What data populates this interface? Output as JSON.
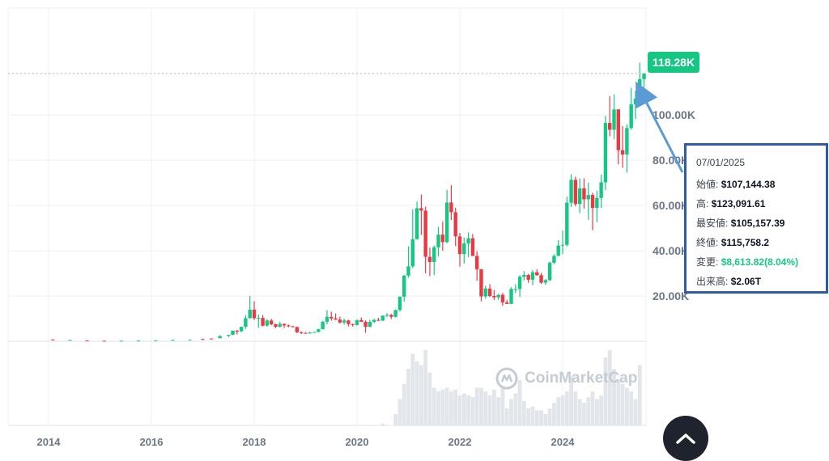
{
  "chart_data": {
    "type": "candlestick",
    "x_ticks": [
      "2014",
      "2016",
      "2018",
      "2020",
      "2022",
      "2024"
    ],
    "y_ticks": [
      "20.00K",
      "40.00K",
      "60.00K",
      "80.00K",
      "100.00K"
    ],
    "ylim": [
      0,
      125000
    ],
    "current_price_label": "118.28K",
    "current_price": 118280,
    "colors": {
      "up": "#16c784",
      "down": "#ea3943",
      "volume": "#e2e5ea",
      "grid": "#eef0f3"
    },
    "candles": [
      [
        "2014-02",
        800,
        900,
        550,
        600
      ],
      [
        "2014-06",
        600,
        680,
        560,
        640
      ],
      [
        "2014-10",
        400,
        420,
        300,
        340
      ],
      [
        "2015-02",
        250,
        280,
        200,
        240
      ],
      [
        "2015-06",
        240,
        300,
        220,
        280
      ],
      [
        "2015-10",
        310,
        380,
        300,
        370
      ],
      [
        "2016-02",
        420,
        440,
        400,
        430
      ],
      [
        "2016-06",
        530,
        760,
        520,
        670
      ],
      [
        "2016-10",
        610,
        750,
        600,
        740
      ],
      [
        "2017-01",
        970,
        1150,
        750,
        960
      ],
      [
        "2017-03",
        1190,
        1290,
        900,
        1070
      ],
      [
        "2017-05",
        1350,
        2700,
        1340,
        2300
      ],
      [
        "2017-07",
        2500,
        2900,
        1800,
        2870
      ],
      [
        "2017-08",
        2870,
        4700,
        2700,
        4700
      ],
      [
        "2017-09",
        4700,
        5000,
        3000,
        4300
      ],
      [
        "2017-10",
        4400,
        6400,
        4100,
        6400
      ],
      [
        "2017-11",
        6400,
        11500,
        5500,
        10200
      ],
      [
        "2017-12",
        10200,
        20000,
        10000,
        14000
      ],
      [
        "2018-01",
        14000,
        17700,
        9400,
        10200
      ],
      [
        "2018-02",
        10200,
        11800,
        6000,
        10300
      ],
      [
        "2018-03",
        10300,
        11600,
        6600,
        6900
      ],
      [
        "2018-04",
        6900,
        9800,
        6500,
        9200
      ],
      [
        "2018-05",
        9200,
        9900,
        7100,
        7500
      ],
      [
        "2018-06",
        7500,
        7800,
        5800,
        6400
      ],
      [
        "2018-07",
        6400,
        8500,
        6100,
        7700
      ],
      [
        "2018-08",
        7700,
        7800,
        5900,
        7000
      ],
      [
        "2018-09",
        7000,
        7400,
        6200,
        6600
      ],
      [
        "2018-10",
        6600,
        6800,
        6200,
        6300
      ],
      [
        "2018-11",
        6300,
        6500,
        3600,
        4000
      ],
      [
        "2018-12",
        4000,
        4300,
        3200,
        3700
      ],
      [
        "2019-01",
        3700,
        4100,
        3400,
        3450
      ],
      [
        "2019-02",
        3450,
        4200,
        3400,
        3850
      ],
      [
        "2019-03",
        3850,
        4100,
        3700,
        4100
      ],
      [
        "2019-04",
        4100,
        5600,
        4000,
        5300
      ],
      [
        "2019-05",
        5300,
        9000,
        5300,
        8600
      ],
      [
        "2019-06",
        8600,
        13800,
        7500,
        10800
      ],
      [
        "2019-07",
        10800,
        13100,
        9100,
        10100
      ],
      [
        "2019-08",
        10100,
        12300,
        9400,
        9600
      ],
      [
        "2019-09",
        9600,
        10900,
        7800,
        8300
      ],
      [
        "2019-10",
        8300,
        10000,
        7400,
        9200
      ],
      [
        "2019-11",
        9200,
        9500,
        6600,
        7600
      ],
      [
        "2019-12",
        7600,
        7800,
        6500,
        7200
      ],
      [
        "2020-01",
        7200,
        9600,
        6900,
        9350
      ],
      [
        "2020-02",
        9350,
        10500,
        8500,
        8600
      ],
      [
        "2020-03",
        8600,
        9200,
        3800,
        6400
      ],
      [
        "2020-04",
        6400,
        9400,
        6200,
        8600
      ],
      [
        "2020-05",
        8600,
        10000,
        8100,
        9450
      ],
      [
        "2020-06",
        9450,
        10400,
        8900,
        9150
      ],
      [
        "2020-07",
        9150,
        11400,
        8900,
        11350
      ],
      [
        "2020-08",
        11350,
        12500,
        10600,
        11650
      ],
      [
        "2020-09",
        11650,
        12100,
        9800,
        10800
      ],
      [
        "2020-10",
        10800,
        14100,
        10500,
        13800
      ],
      [
        "2020-11",
        13800,
        19800,
        13200,
        19700
      ],
      [
        "2020-12",
        19700,
        29300,
        17600,
        29000
      ],
      [
        "2021-01",
        29000,
        41900,
        28100,
        33100
      ],
      [
        "2021-02",
        33100,
        58300,
        32300,
        45100
      ],
      [
        "2021-03",
        45100,
        61700,
        44900,
        58800
      ],
      [
        "2021-04",
        58800,
        64800,
        47000,
        57700
      ],
      [
        "2021-05",
        57700,
        59500,
        30000,
        37300
      ],
      [
        "2021-06",
        37300,
        41300,
        28800,
        35000
      ],
      [
        "2021-07",
        35000,
        42300,
        29300,
        41500
      ],
      [
        "2021-08",
        41500,
        50500,
        37400,
        47100
      ],
      [
        "2021-09",
        47100,
        52900,
        40000,
        43800
      ],
      [
        "2021-10",
        43800,
        66900,
        43300,
        61300
      ],
      [
        "2021-11",
        61300,
        69000,
        53500,
        57000
      ],
      [
        "2021-12",
        57000,
        59000,
        42000,
        46300
      ],
      [
        "2022-01",
        46300,
        47900,
        33000,
        38500
      ],
      [
        "2022-02",
        38500,
        45800,
        34300,
        43200
      ],
      [
        "2022-03",
        43200,
        48100,
        37200,
        45500
      ],
      [
        "2022-04",
        45500,
        47400,
        37700,
        37700
      ],
      [
        "2022-05",
        37700,
        39800,
        26700,
        31800
      ],
      [
        "2022-06",
        31800,
        31900,
        17600,
        19800
      ],
      [
        "2022-07",
        19800,
        24600,
        18800,
        23300
      ],
      [
        "2022-08",
        23300,
        25200,
        19600,
        20000
      ],
      [
        "2022-09",
        20000,
        22700,
        18200,
        19400
      ],
      [
        "2022-10",
        19400,
        20900,
        18300,
        20500
      ],
      [
        "2022-11",
        20500,
        21400,
        15600,
        17200
      ],
      [
        "2022-12",
        17200,
        18300,
        16400,
        16500
      ],
      [
        "2023-01",
        16500,
        23900,
        16500,
        23100
      ],
      [
        "2023-02",
        23100,
        25200,
        21400,
        23100
      ],
      [
        "2023-03",
        23100,
        29200,
        19600,
        28500
      ],
      [
        "2023-04",
        28500,
        31000,
        26900,
        29300
      ],
      [
        "2023-05",
        29300,
        29800,
        25800,
        27200
      ],
      [
        "2023-06",
        27200,
        31400,
        24800,
        30500
      ],
      [
        "2023-07",
        30500,
        31800,
        28900,
        29200
      ],
      [
        "2023-08",
        29200,
        30200,
        25300,
        25900
      ],
      [
        "2023-09",
        25900,
        27500,
        24900,
        27000
      ],
      [
        "2023-10",
        27000,
        35200,
        26600,
        34700
      ],
      [
        "2023-11",
        34700,
        38400,
        34100,
        37700
      ],
      [
        "2023-12",
        37700,
        44700,
        37600,
        42300
      ],
      [
        "2024-01",
        42300,
        48900,
        38500,
        42600
      ],
      [
        "2024-02",
        42600,
        63900,
        41900,
        61200
      ],
      [
        "2024-03",
        61200,
        73800,
        59300,
        71300
      ],
      [
        "2024-04",
        71300,
        72700,
        59600,
        60600
      ],
      [
        "2024-05",
        60600,
        71900,
        56600,
        67500
      ],
      [
        "2024-06",
        67500,
        71900,
        58600,
        62700
      ],
      [
        "2024-07",
        62700,
        70000,
        53700,
        64600
      ],
      [
        "2024-08",
        64600,
        65600,
        49100,
        58900
      ],
      [
        "2024-09",
        58900,
        66500,
        52600,
        63300
      ],
      [
        "2024-10",
        63300,
        73600,
        58900,
        70200
      ],
      [
        "2024-11",
        70200,
        99600,
        66800,
        96400
      ],
      [
        "2024-12",
        96400,
        108300,
        90500,
        93400
      ],
      [
        "2025-01",
        93400,
        109100,
        89300,
        102400
      ],
      [
        "2025-02",
        102400,
        102500,
        78200,
        84400
      ],
      [
        "2025-03",
        84400,
        95000,
        76600,
        82500
      ],
      [
        "2025-04",
        82500,
        95800,
        74500,
        94200
      ],
      [
        "2025-05",
        94200,
        111900,
        93400,
        104600
      ],
      [
        "2025-06",
        104600,
        110600,
        98200,
        107100
      ],
      [
        "2025-07",
        107144.38,
        123091.61,
        105157.39,
        115758.2
      ],
      [
        "2025-08",
        115758,
        118500,
        112000,
        118280
      ]
    ],
    "volumes": [
      [
        "2020-07",
        0.05
      ],
      [
        "2020-10",
        0.3
      ],
      [
        "2020-11",
        0.7
      ],
      [
        "2020-12",
        1.1
      ],
      [
        "2021-01",
        1.5
      ],
      [
        "2021-02",
        1.9
      ],
      [
        "2021-03",
        1.7
      ],
      [
        "2021-04",
        1.6
      ],
      [
        "2021-05",
        2.0
      ],
      [
        "2021-06",
        1.4
      ],
      [
        "2021-07",
        1.0
      ],
      [
        "2021-08",
        0.9
      ],
      [
        "2021-09",
        0.95
      ],
      [
        "2021-10",
        1.0
      ],
      [
        "2021-11",
        0.9
      ],
      [
        "2021-12",
        0.95
      ],
      [
        "2022-01",
        0.8
      ],
      [
        "2022-02",
        0.85
      ],
      [
        "2022-03",
        0.8
      ],
      [
        "2022-04",
        0.75
      ],
      [
        "2022-05",
        1.0
      ],
      [
        "2022-06",
        1.0
      ],
      [
        "2022-07",
        0.9
      ],
      [
        "2022-08",
        0.8
      ],
      [
        "2022-09",
        0.95
      ],
      [
        "2022-10",
        0.75
      ],
      [
        "2022-11",
        1.0
      ],
      [
        "2022-12",
        0.45
      ],
      [
        "2023-01",
        0.7
      ],
      [
        "2023-02",
        0.85
      ],
      [
        "2023-03",
        1.2
      ],
      [
        "2023-04",
        0.65
      ],
      [
        "2023-05",
        0.45
      ],
      [
        "2023-06",
        0.5
      ],
      [
        "2023-07",
        0.4
      ],
      [
        "2023-08",
        0.4
      ],
      [
        "2023-09",
        0.3
      ],
      [
        "2023-10",
        0.45
      ],
      [
        "2023-11",
        0.6
      ],
      [
        "2023-12",
        0.75
      ],
      [
        "2024-01",
        0.8
      ],
      [
        "2024-02",
        0.9
      ],
      [
        "2024-03",
        1.3
      ],
      [
        "2024-04",
        0.9
      ],
      [
        "2024-05",
        0.7
      ],
      [
        "2024-06",
        0.6
      ],
      [
        "2024-07",
        0.75
      ],
      [
        "2024-08",
        0.9
      ],
      [
        "2024-09",
        0.7
      ],
      [
        "2024-10",
        0.8
      ],
      [
        "2024-11",
        1.8
      ],
      [
        "2024-12",
        2.0
      ],
      [
        "2025-01",
        1.5
      ],
      [
        "2025-02",
        1.2
      ],
      [
        "2025-03",
        1.1
      ],
      [
        "2025-04",
        1.0
      ],
      [
        "2025-05",
        0.9
      ],
      [
        "2025-06",
        0.7
      ],
      [
        "2025-07",
        1.6
      ]
    ],
    "volume_max": 2.06
  },
  "tooltip": {
    "date": "07/01/2025",
    "open_label": "始値:",
    "open_value": "$107,144.38",
    "high_label": "高:",
    "high_value": "$123,091.61",
    "low_label": "最安値:",
    "low_value": "$105,157.39",
    "close_label": "終値:",
    "close_value": "$115,758.2",
    "change_label": "変更:",
    "change_value": "$8,613.82(8.04%)",
    "volume_label": "出来高:",
    "volume_value": "$2.06T"
  },
  "watermark": "CoinMarketCap"
}
